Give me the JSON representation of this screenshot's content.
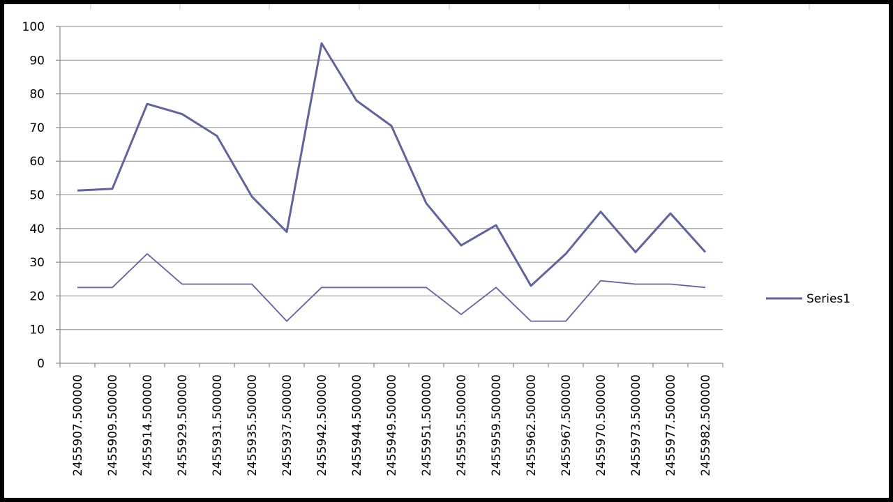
{
  "chart_data": {
    "type": "line",
    "categories": [
      "2455907.500000",
      "2455909.500000",
      "2455914.500000",
      "2455929.500000",
      "2455931.500000",
      "2455935.500000",
      "2455937.500000",
      "2455942.500000",
      "2455944.500000",
      "2455949.500000",
      "2455951.500000",
      "2455955.500000",
      "2455959.500000",
      "2455962.500000",
      "2455967.500000",
      "2455970.500000",
      "2455973.500000",
      "2455977.500000",
      "2455982.500000"
    ],
    "series": [
      {
        "name": "Series1",
        "color": "#62629c",
        "values": [
          51.3,
          51.8,
          77,
          74,
          67.5,
          49.5,
          39,
          95,
          78,
          70.5,
          47.5,
          35,
          41,
          23,
          32.5,
          45,
          33,
          44.5,
          33
        ]
      },
      {
        "color": "#62629c",
        "values": [
          22.5,
          22.5,
          32.5,
          23.5,
          23.5,
          23.5,
          12.5,
          22.5,
          22.5,
          22.5,
          22.5,
          14.5,
          22.5,
          12.5,
          12.5,
          24.5,
          23.5,
          23.5,
          22.5
        ]
      }
    ],
    "ylim": [
      0,
      100
    ],
    "yticks": [
      0,
      10,
      20,
      30,
      40,
      50,
      60,
      70,
      80,
      90,
      100
    ],
    "grid": true,
    "legend": "right"
  }
}
